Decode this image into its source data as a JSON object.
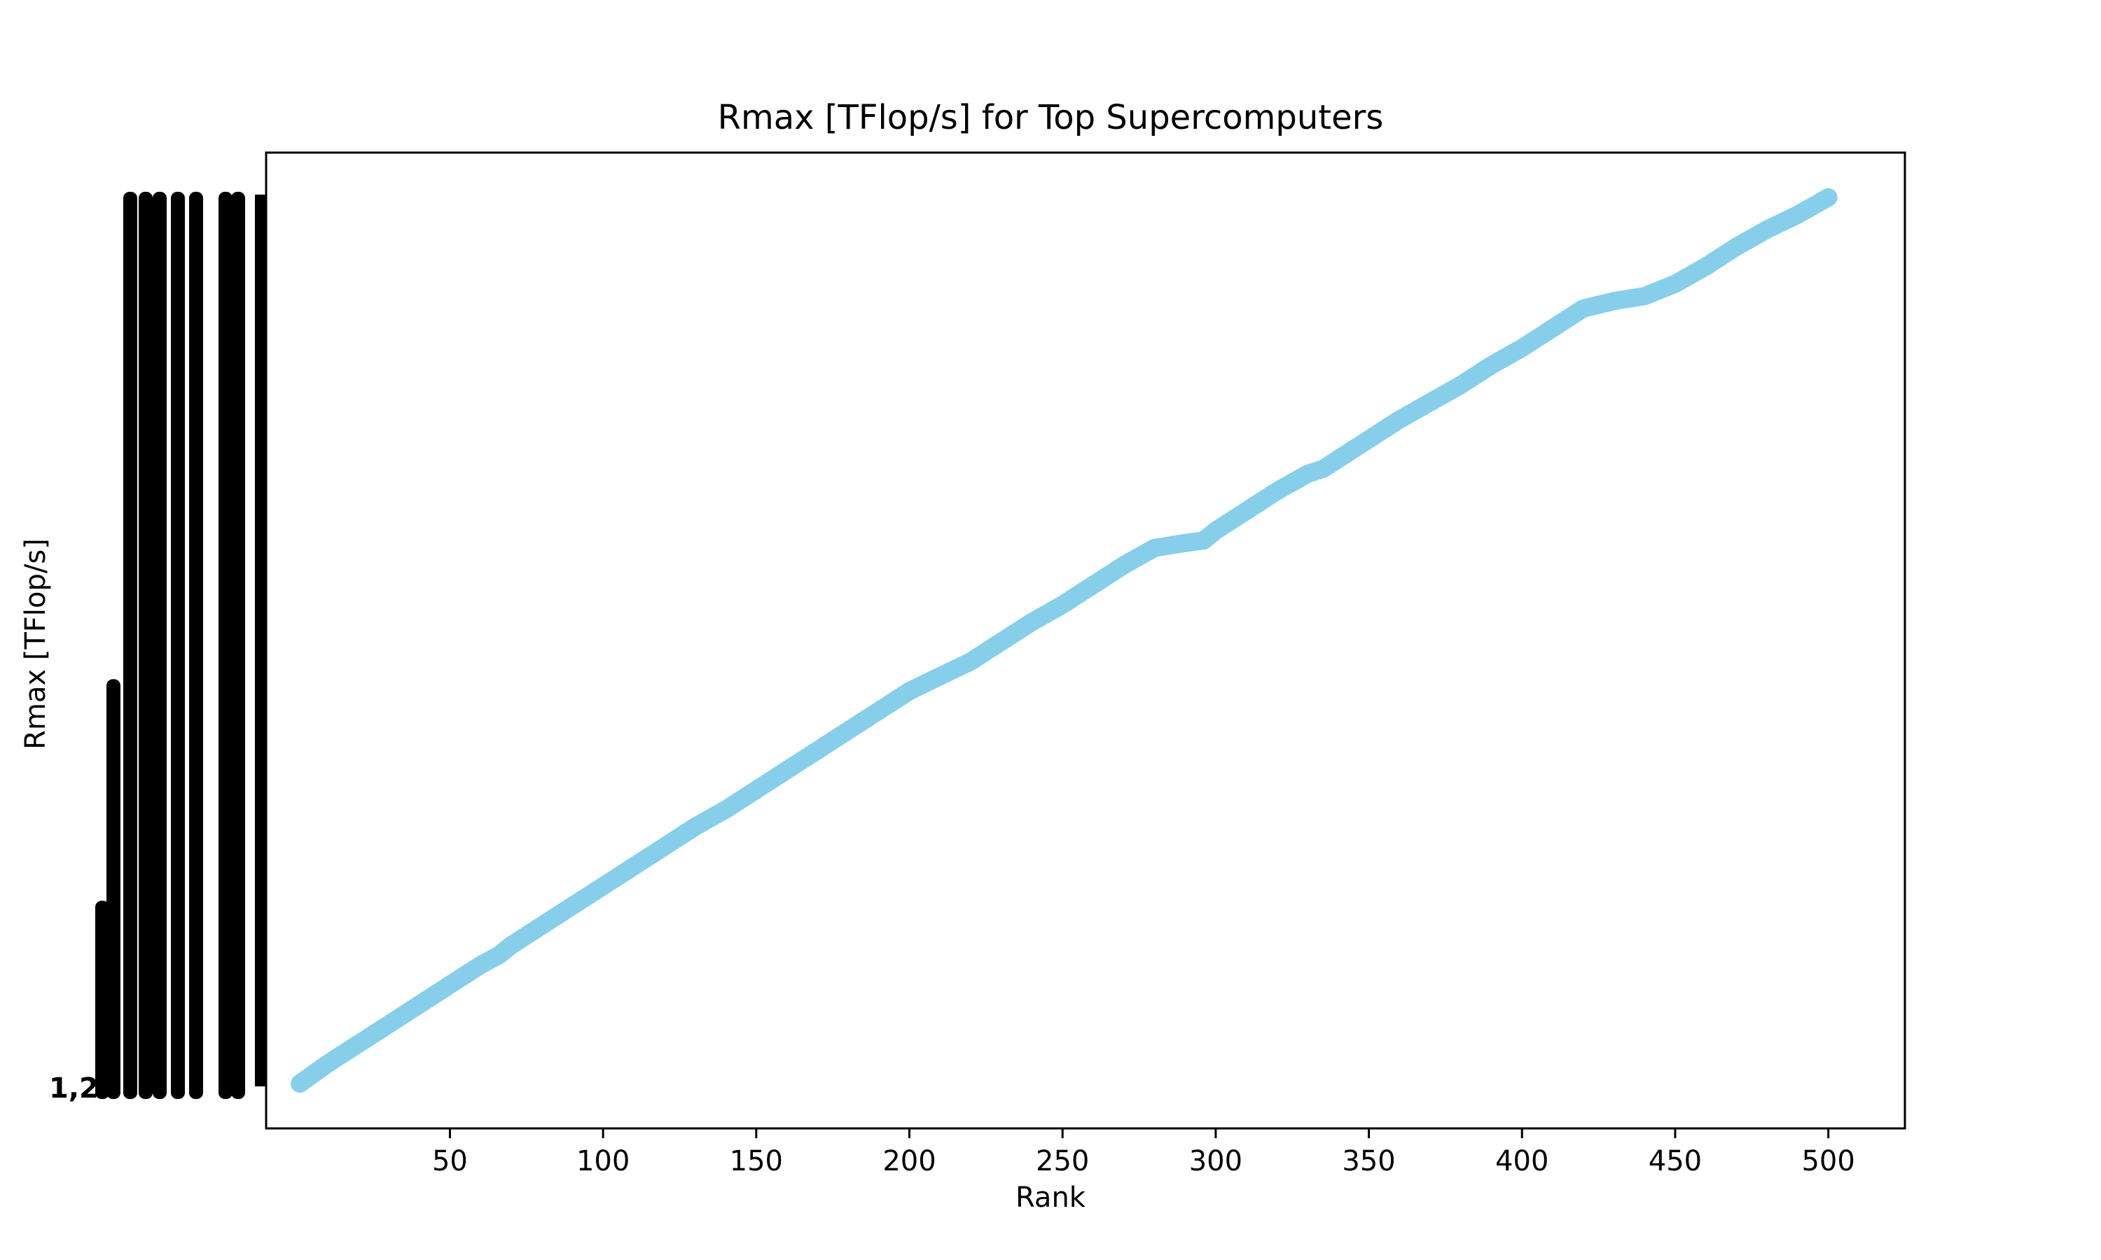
{
  "chart_data": {
    "type": "line",
    "title": "Rmax [TFlop/s] for Top Supercomputers",
    "xlabel": "Rank",
    "ylabel": "Rmax [TFlop/s]",
    "xlim": [
      -10,
      525
    ],
    "x_ticks": [
      50,
      100,
      150,
      200,
      250,
      300,
      350,
      400,
      450,
      500
    ],
    "y_axis_note": "Categorical y-axis: ~500 distinct overlapping tick labels rendered illegibly; lowest visible label begins with 1,2",
    "y_visible_label": "1,2",
    "series": [
      {
        "color": "#87CEEB",
        "x": [
          1,
          10,
          20,
          30,
          40,
          50,
          60,
          66,
          70,
          80,
          90,
          100,
          110,
          120,
          130,
          140,
          150,
          160,
          170,
          180,
          190,
          200,
          210,
          220,
          230,
          240,
          250,
          260,
          270,
          280,
          290,
          296,
          300,
          310,
          320,
          330,
          335,
          340,
          350,
          360,
          370,
          380,
          390,
          400,
          410,
          420,
          430,
          440,
          450,
          460,
          470,
          480,
          490,
          500
        ],
        "y": [
          1,
          9,
          17,
          25,
          33,
          41,
          49,
          53,
          57,
          65,
          73,
          81,
          89,
          97,
          105,
          112,
          120,
          128,
          136,
          144,
          152,
          160,
          166,
          172,
          180,
          188,
          195,
          203,
          211,
          218,
          220,
          221,
          225,
          233,
          241,
          248,
          250,
          254,
          262,
          270,
          277,
          284,
          292,
          299,
          307,
          315,
          318,
          320,
          325,
          332,
          340,
          347,
          353,
          360
        ]
      }
    ],
    "grid": false,
    "legend": "none"
  }
}
